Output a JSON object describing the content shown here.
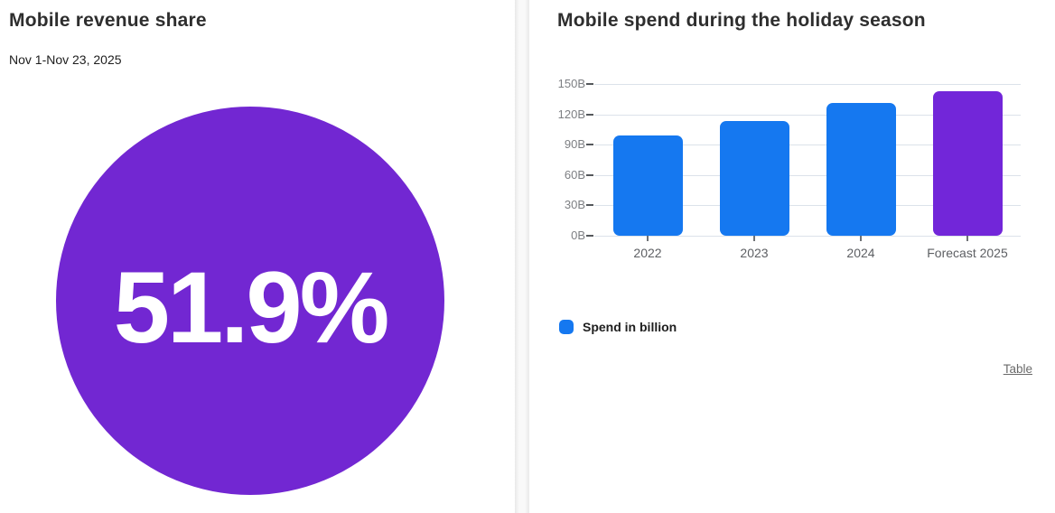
{
  "panels": {
    "revenue": {
      "title": "Mobile revenue share",
      "subtitle": "Nov 1-Nov 23, 2025",
      "share_value": "51.9%"
    },
    "spend": {
      "title": "Mobile spend during the holiday season",
      "table_link": "Table"
    }
  },
  "chart_data": {
    "type": "bar",
    "title": "Mobile spend during the holiday season",
    "categories": [
      "2022",
      "2023",
      "2024",
      "Forecast 2025"
    ],
    "series": [
      {
        "name": "Spend in billion",
        "values": [
          99,
          113,
          131,
          143
        ]
      }
    ],
    "bar_colors": [
      "#1578F0",
      "#1578F0",
      "#1578F0",
      "#7226D9"
    ],
    "xlabel": "",
    "ylabel": "",
    "ylim": [
      0,
      150
    ],
    "yticks": [
      0,
      30,
      60,
      90,
      120,
      150
    ],
    "ytick_labels": [
      "0B",
      "30B",
      "60B",
      "90B",
      "120B",
      "150B"
    ],
    "grid": true,
    "legend": {
      "label": "Spend in billion",
      "position": "bottom-left"
    }
  },
  "colors": {
    "bar_blue": "#1578F0",
    "bar_purple": "#7226D9",
    "circle_purple": "#7227D2",
    "gridline": "#dce2ea",
    "axis_text": "#7d7f83"
  }
}
